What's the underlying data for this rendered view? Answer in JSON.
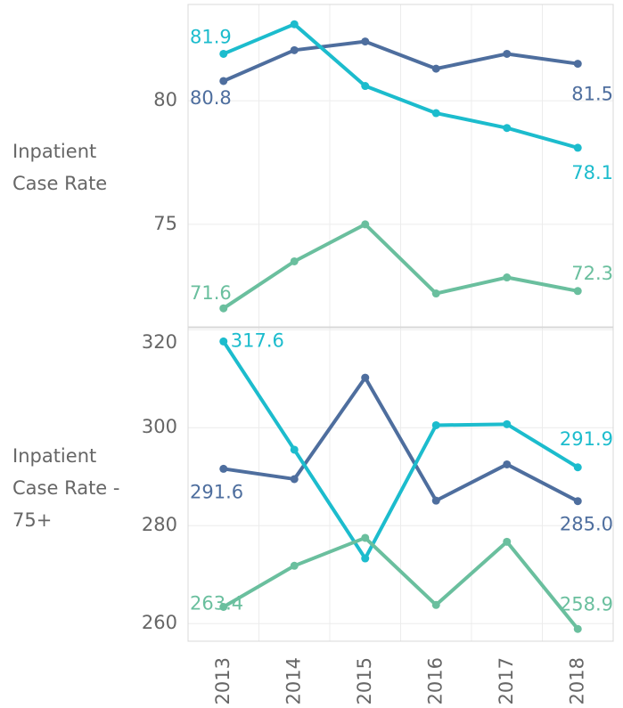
{
  "chart_data": [
    {
      "type": "line",
      "row_label": "Inpatient Case Rate",
      "categories": [
        "2013",
        "2014",
        "2015",
        "2016",
        "2017",
        "2018"
      ],
      "ylim": [
        70.85,
        83.9
      ],
      "yticks": [
        75,
        80
      ],
      "grid": true,
      "series": [
        {
          "color": "#4e6e9e",
          "values": [
            80.8,
            82.05,
            82.4,
            81.3,
            81.9,
            81.5
          ],
          "value_labels": [
            "80.8",
            null,
            null,
            null,
            null,
            "81.5"
          ]
        },
        {
          "color": "#1cbccd",
          "values": [
            81.9,
            83.1,
            80.6,
            79.5,
            78.9,
            78.1
          ],
          "value_labels": [
            "81.9",
            null,
            null,
            null,
            null,
            "78.1"
          ]
        },
        {
          "color": "#6abf9e",
          "values": [
            71.6,
            73.5,
            75.0,
            72.2,
            72.85,
            72.3
          ],
          "value_labels": [
            "71.6",
            null,
            null,
            null,
            null,
            "72.3"
          ]
        }
      ]
    },
    {
      "type": "line",
      "row_label": "Inpatient Case Rate - 75+",
      "categories": [
        "2013",
        "2014",
        "2015",
        "2016",
        "2017",
        "2018"
      ],
      "ylim": [
        256.4,
        320.4
      ],
      "yticks": [
        260,
        280,
        300,
        320
      ],
      "grid": true,
      "series": [
        {
          "color": "#4e6e9e",
          "values": [
            291.6,
            289.5,
            310.2,
            285.1,
            292.5,
            285.0
          ],
          "value_labels": [
            "291.6",
            null,
            null,
            null,
            null,
            "285.0"
          ]
        },
        {
          "color": "#1cbccd",
          "values": [
            317.6,
            295.5,
            273.3,
            300.5,
            300.7,
            291.9
          ],
          "value_labels": [
            "317.6",
            null,
            null,
            null,
            null,
            "291.9"
          ]
        },
        {
          "color": "#6abf9e",
          "values": [
            263.4,
            271.8,
            277.5,
            263.8,
            276.7,
            258.9
          ],
          "value_labels": [
            "263.4",
            null,
            null,
            null,
            null,
            "258.9"
          ]
        }
      ]
    }
  ]
}
